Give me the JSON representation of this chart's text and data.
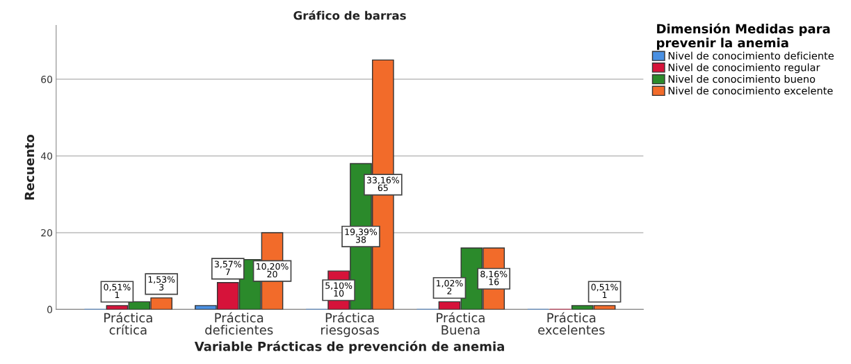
{
  "chart_data": {
    "type": "bar",
    "title": "Gráfico de barras",
    "xlabel": "Variable Prácticas de prevención de anemia",
    "ylabel": "Recuento",
    "legend_title": "Dimensión Medidas para\nprevenir la anemia",
    "categories": [
      "Práctica\ncrítica",
      "Práctica\ndeficientes",
      "Práctica\nriesgosas",
      "Práctica\nBuena",
      "Práctica\nexcelentes"
    ],
    "series": [
      {
        "name": "Nivel de conocimiento deficiente",
        "color": "#4a90e2",
        "values": [
          0,
          1,
          0,
          0,
          0
        ],
        "value_labels": [
          null,
          null,
          null,
          null,
          null
        ]
      },
      {
        "name": "Nivel de conocimiento regular",
        "color": "#d6133a",
        "values": [
          1,
          7,
          10,
          2,
          0
        ],
        "value_labels": [
          "0,51%\n1",
          "3,57%\n7",
          "5,10%\n10",
          "1,02%\n2",
          null
        ]
      },
      {
        "name": "Nivel de conocimiento bueno",
        "color": "#2b8a2b",
        "values": [
          2,
          13,
          38,
          16,
          1
        ],
        "value_labels": [
          null,
          null,
          "19,39%\n38",
          null,
          null
        ]
      },
      {
        "name": "Nivel de conocimiento excelente",
        "color": "#f26b2a",
        "values": [
          3,
          20,
          65,
          16,
          1
        ],
        "value_labels": [
          "1,53%\n3",
          "10,20%\n20",
          "33,16%\n65",
          "8,16%\n16",
          "0,51%\n1"
        ]
      }
    ],
    "ylim": [
      0,
      74
    ],
    "yticks": [
      0,
      20,
      40,
      60
    ],
    "grid": "y",
    "legend": "top right"
  }
}
